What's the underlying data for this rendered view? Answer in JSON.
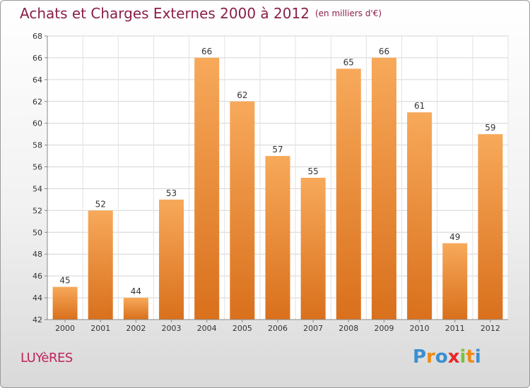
{
  "title": "Achats et Charges Externes 2000 à 2012",
  "unit": "(en milliers d'€)",
  "commune": "LUYèRES",
  "logo": {
    "letters": [
      "P",
      "r",
      "o",
      "x",
      "i",
      "t",
      "i"
    ],
    "colors": [
      "#3a8fd0",
      "#f08a16",
      "#3a8fd0",
      "#e8262a",
      "#7cc142",
      "#f08a16",
      "#3a8fd0"
    ]
  },
  "colors": {
    "bar_top": "#f7a95a",
    "bar_bottom": "#d9701c",
    "title": "#8a1f49",
    "commune": "#c0245c"
  },
  "chart_data": {
    "type": "bar",
    "categories": [
      "2000",
      "2001",
      "2002",
      "2003",
      "2004",
      "2005",
      "2006",
      "2007",
      "2008",
      "2009",
      "2010",
      "2011",
      "2012"
    ],
    "values": [
      45,
      52,
      44,
      53,
      66,
      62,
      57,
      55,
      65,
      66,
      61,
      49,
      59
    ],
    "ylim": [
      42,
      68
    ],
    "yticks": [
      42,
      44,
      46,
      48,
      50,
      52,
      54,
      56,
      58,
      60,
      62,
      64,
      66,
      68
    ],
    "grid": true,
    "legend": "none"
  }
}
